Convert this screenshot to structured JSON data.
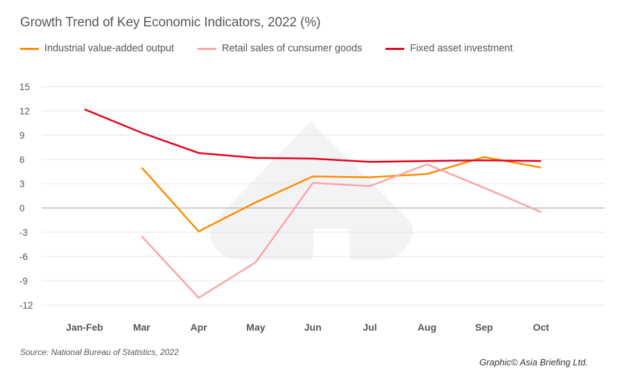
{
  "chart_data": {
    "type": "line",
    "title": "Growth Trend of Key Economic Indicators, 2022 (%)",
    "xlabel": "",
    "ylabel": "",
    "categories": [
      "Jan-Feb",
      "Mar",
      "Apr",
      "May",
      "Jun",
      "Jul",
      "Aug",
      "Sep",
      "Oct"
    ],
    "ylim": [
      -12,
      15
    ],
    "yticks": [
      15,
      12,
      9,
      6,
      3,
      0,
      -3,
      -6,
      -9,
      -12
    ],
    "grid": true,
    "legend_position": "top-left",
    "series": [
      {
        "name": "Industrial value-added output",
        "color": "#FF8C00",
        "values": [
          null,
          5.0,
          -2.9,
          0.7,
          3.9,
          3.8,
          4.2,
          6.3,
          5.0
        ]
      },
      {
        "name": "Retail sales of cunsumer goods",
        "color": "#F9A3A8",
        "values": [
          null,
          -3.5,
          -11.1,
          -6.7,
          3.1,
          2.7,
          5.4,
          2.5,
          -0.5
        ]
      },
      {
        "name": "Fixed asset investment",
        "color": "#E8001C",
        "values": [
          12.2,
          9.3,
          6.8,
          6.2,
          6.1,
          5.7,
          5.8,
          5.9,
          5.8
        ]
      }
    ]
  },
  "source": "Source: National Bureau of Statistics, 2022",
  "credit": "Graphic© Asia Briefing Ltd."
}
